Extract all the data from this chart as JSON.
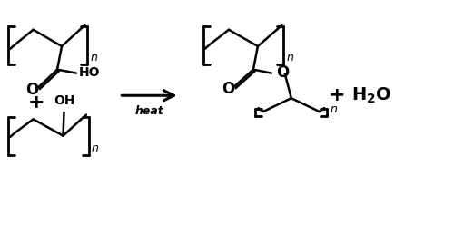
{
  "bg": "#ffffff",
  "lc": "#000000",
  "lw": 1.8,
  "blw": 2.0,
  "figsize": [
    5.0,
    2.48
  ],
  "dpi": 100,
  "xlim": [
    0,
    10
  ],
  "ylim": [
    0,
    5
  ]
}
